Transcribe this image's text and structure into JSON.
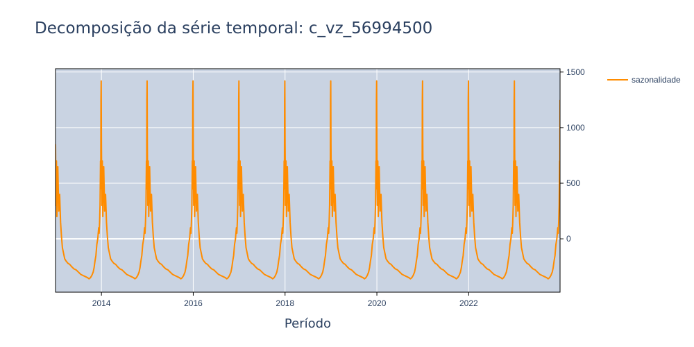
{
  "chart_data": {
    "type": "line",
    "title": "Decomposição da série temporal: c_vz_56994500",
    "xlabel": "Período",
    "ylabel": "",
    "x_tick_labels": [
      "2014",
      "2016",
      "2018",
      "2020",
      "2022"
    ],
    "x_tick_years": [
      2014,
      2016,
      2018,
      2020,
      2022
    ],
    "xlim": [
      2013.0,
      2023.99
    ],
    "y_tick_labels": [
      "1500",
      "1000",
      "500",
      "0"
    ],
    "y_tick_values": [
      1500,
      1000,
      500,
      0
    ],
    "ylim": [
      -480,
      1530
    ],
    "y_axis_side": "right",
    "grid": true,
    "legend_position": "top-right",
    "series": [
      {
        "name": "sazonalidade",
        "color": "#ff8c00",
        "period_years": 1,
        "x_year_fraction": [
          0.0,
          0.01,
          0.02,
          0.03,
          0.05,
          0.07,
          0.09,
          0.11,
          0.13,
          0.15,
          0.17,
          0.2,
          0.23,
          0.27,
          0.31,
          0.35,
          0.4,
          0.45,
          0.5,
          0.55,
          0.6,
          0.65,
          0.7,
          0.73,
          0.76,
          0.79,
          0.82,
          0.84,
          0.86,
          0.88,
          0.9,
          0.92,
          0.94,
          0.95,
          0.96,
          0.97,
          0.98,
          0.985,
          0.99,
          0.995
        ],
        "y": [
          850,
          300,
          700,
          200,
          650,
          250,
          400,
          150,
          20,
          -80,
          -120,
          -180,
          -200,
          -220,
          -230,
          -250,
          -270,
          -280,
          -300,
          -320,
          -330,
          -340,
          -350,
          -360,
          -350,
          -330,
          -300,
          -260,
          -200,
          -150,
          -50,
          0,
          100,
          50,
          150,
          300,
          700,
          450,
          1250,
          1420
        ]
      }
    ]
  },
  "colors": {
    "plot_background": "#c9d3e2",
    "grid": "#ffffff",
    "text": "#2a3f5f",
    "line": "#ff8c00"
  }
}
